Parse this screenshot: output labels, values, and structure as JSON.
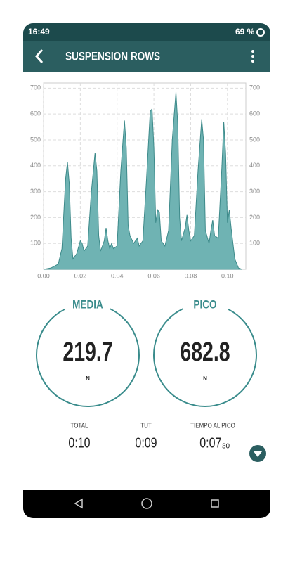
{
  "status_bar": {
    "time": "16:49",
    "battery": "69 %"
  },
  "app_bar": {
    "title": "SUSPENSION ROWS"
  },
  "chart": {
    "type": "area",
    "color": "#6fb3b3",
    "x": [
      0,
      0.004,
      0.008,
      0.01,
      0.012,
      0.013,
      0.014,
      0.015,
      0.016,
      0.018,
      0.02,
      0.021,
      0.022,
      0.024,
      0.026,
      0.028,
      0.029,
      0.03,
      0.031,
      0.033,
      0.034,
      0.035,
      0.036,
      0.037,
      0.038,
      0.04,
      0.042,
      0.044,
      0.045,
      0.046,
      0.047,
      0.049,
      0.051,
      0.052,
      0.054,
      0.056,
      0.058,
      0.059,
      0.06,
      0.061,
      0.062,
      0.063,
      0.064,
      0.066,
      0.068,
      0.07,
      0.072,
      0.073,
      0.074,
      0.075,
      0.077,
      0.078,
      0.079,
      0.08,
      0.082,
      0.084,
      0.086,
      0.087,
      0.088,
      0.09,
      0.091,
      0.092,
      0.093,
      0.095,
      0.097,
      0.098,
      0.099,
      0.1,
      0.101,
      0.102,
      0.103,
      0.104,
      0.106,
      0.108
    ],
    "values": [
      0,
      5,
      20,
      80,
      350,
      415,
      330,
      120,
      40,
      60,
      110,
      100,
      70,
      90,
      300,
      450,
      380,
      130,
      70,
      110,
      160,
      110,
      80,
      100,
      80,
      90,
      380,
      575,
      470,
      170,
      130,
      100,
      120,
      90,
      110,
      350,
      610,
      620,
      470,
      180,
      230,
      220,
      110,
      90,
      150,
      500,
      685,
      560,
      200,
      110,
      160,
      210,
      150,
      110,
      130,
      380,
      580,
      500,
      150,
      100,
      150,
      190,
      130,
      120,
      400,
      570,
      450,
      180,
      230,
      160,
      100,
      40,
      5,
      0
    ],
    "xlim": [
      0,
      0.11
    ],
    "ylim": [
      0,
      720
    ],
    "xticks": [
      {
        "value": 0,
        "label": "0.00"
      },
      {
        "value": 0.02,
        "label": "0.02"
      },
      {
        "value": 0.04,
        "label": "0.04"
      },
      {
        "value": 0.06,
        "label": "0.06"
      },
      {
        "value": 0.08,
        "label": "0.08"
      },
      {
        "value": 0.1,
        "label": "0.10"
      }
    ],
    "yticks": [
      100,
      200,
      300,
      400,
      500,
      600,
      700
    ],
    "grid": true
  },
  "metrics": [
    {
      "label": "MEDIA",
      "value": "219.7",
      "unit": "N"
    },
    {
      "label": "PICO",
      "value": "682.8",
      "unit": "N"
    }
  ],
  "stats": [
    {
      "label": "TOTAL",
      "value": "0:10"
    },
    {
      "label": "TUT",
      "value": "0:09"
    },
    {
      "label": "TIEMPO AL PICO",
      "value": "0:07",
      "sub": "30"
    }
  ]
}
